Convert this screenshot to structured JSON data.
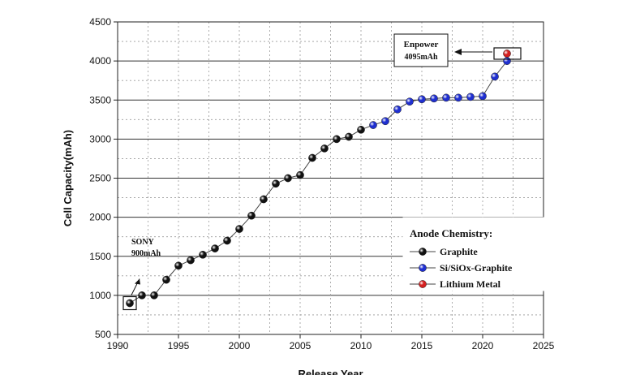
{
  "chart_data": {
    "type": "line",
    "title": "",
    "xlabel": "Release Year",
    "ylabel": "Cell Capacity(mAh)",
    "xlim": [
      1990,
      2025
    ],
    "ylim": [
      500,
      4500
    ],
    "xticks": [
      1990,
      1995,
      2000,
      2005,
      2010,
      2015,
      2020,
      2025
    ],
    "yticks": [
      500,
      1000,
      1500,
      2000,
      2500,
      3000,
      3500,
      4000,
      4500
    ],
    "grid": true,
    "legend_position": "bottom-right",
    "legend_title": "Anode Chemistry:",
    "series": [
      {
        "name": "Graphite",
        "color": "#111111",
        "x": [
          1991,
          1992,
          1993,
          1994,
          1995,
          1996,
          1997,
          1998,
          1999,
          2000,
          2001,
          2002,
          2003,
          2004,
          2005,
          2006,
          2007,
          2008,
          2009,
          2010
        ],
        "y": [
          900,
          1000,
          1000,
          1200,
          1380,
          1450,
          1520,
          1600,
          1700,
          1850,
          2020,
          2230,
          2430,
          2500,
          2540,
          2760,
          2880,
          3000,
          3030,
          3120
        ]
      },
      {
        "name": "Si/SiOx-Graphite",
        "color": "#1f2fd0",
        "x": [
          2011,
          2012,
          2013,
          2014,
          2015,
          2016,
          2017,
          2018,
          2019,
          2020,
          2021,
          2022
        ],
        "y": [
          3180,
          3230,
          3380,
          3480,
          3510,
          3520,
          3530,
          3530,
          3540,
          3550,
          3800,
          4000
        ]
      },
      {
        "name": "Lithium Metal",
        "color": "#d42020",
        "x": [
          2022
        ],
        "y": [
          4095
        ]
      }
    ],
    "annotations": [
      {
        "name": "sony",
        "lines": [
          "SONY",
          "900mAh"
        ],
        "point": [
          1991,
          900
        ]
      },
      {
        "name": "enpower",
        "lines": [
          "Enpower",
          "4095mAh"
        ],
        "point": [
          2022,
          4095
        ]
      }
    ]
  }
}
